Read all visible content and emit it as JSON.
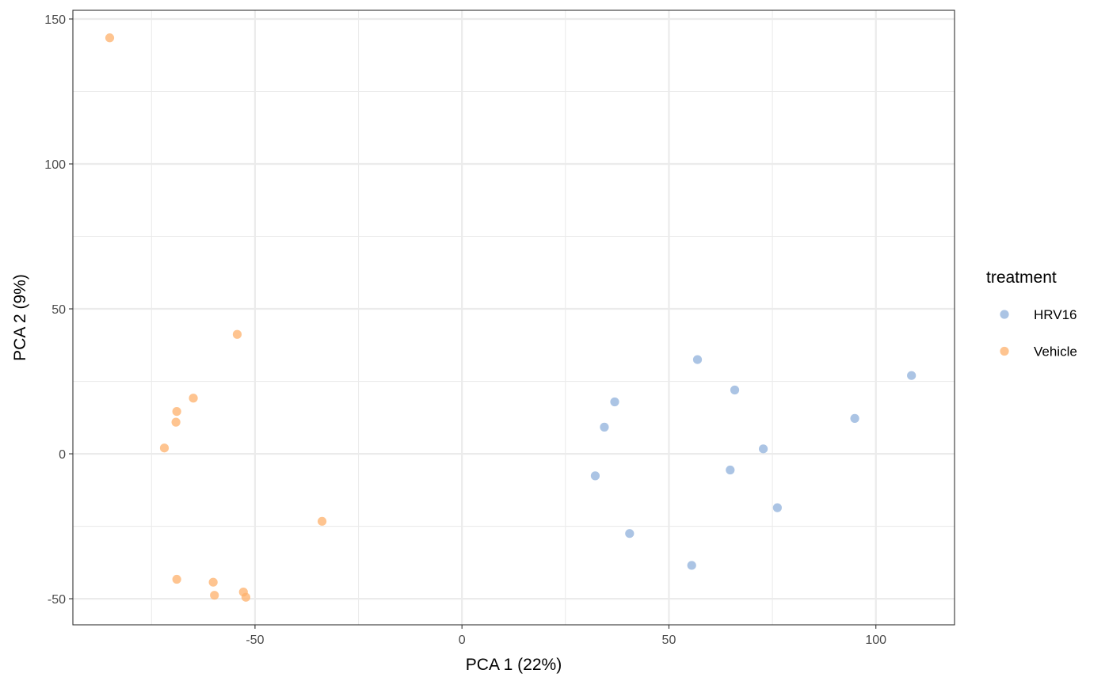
{
  "chart_data": {
    "type": "scatter",
    "title": "",
    "xlabel": "PCA 1 (22%)",
    "ylabel": "PCA 2 (9%)",
    "xlim": [
      -94,
      119
    ],
    "ylim": [
      -59,
      153
    ],
    "xticks": [
      -50,
      0,
      50,
      100
    ],
    "yticks": [
      -50,
      0,
      50,
      100,
      150
    ],
    "grid": true,
    "legend": {
      "title": "treatment",
      "position": "right"
    },
    "series": [
      {
        "name": "HRV16",
        "color": "#8fb0db",
        "points": [
          [
            56.9,
            32.5
          ],
          [
            65.9,
            22.0
          ],
          [
            36.9,
            17.9
          ],
          [
            108.6,
            27.0
          ],
          [
            94.9,
            12.2
          ],
          [
            34.4,
            9.2
          ],
          [
            72.8,
            1.7
          ],
          [
            32.2,
            -7.6
          ],
          [
            64.8,
            -5.6
          ],
          [
            76.2,
            -18.6
          ],
          [
            40.5,
            -27.5
          ],
          [
            55.5,
            -38.5
          ]
        ]
      },
      {
        "name": "Vehicle",
        "color": "#fdb06b",
        "points": [
          [
            -85.1,
            143.5
          ],
          [
            -54.3,
            41.2
          ],
          [
            -64.9,
            19.2
          ],
          [
            -68.9,
            14.6
          ],
          [
            -69.1,
            10.9
          ],
          [
            -71.9,
            2.0
          ],
          [
            -33.8,
            -23.3
          ],
          [
            -68.9,
            -43.3
          ],
          [
            -60.1,
            -44.3
          ],
          [
            -59.8,
            -48.8
          ],
          [
            -52.8,
            -47.7
          ],
          [
            -52.2,
            -49.5
          ]
        ]
      }
    ]
  }
}
